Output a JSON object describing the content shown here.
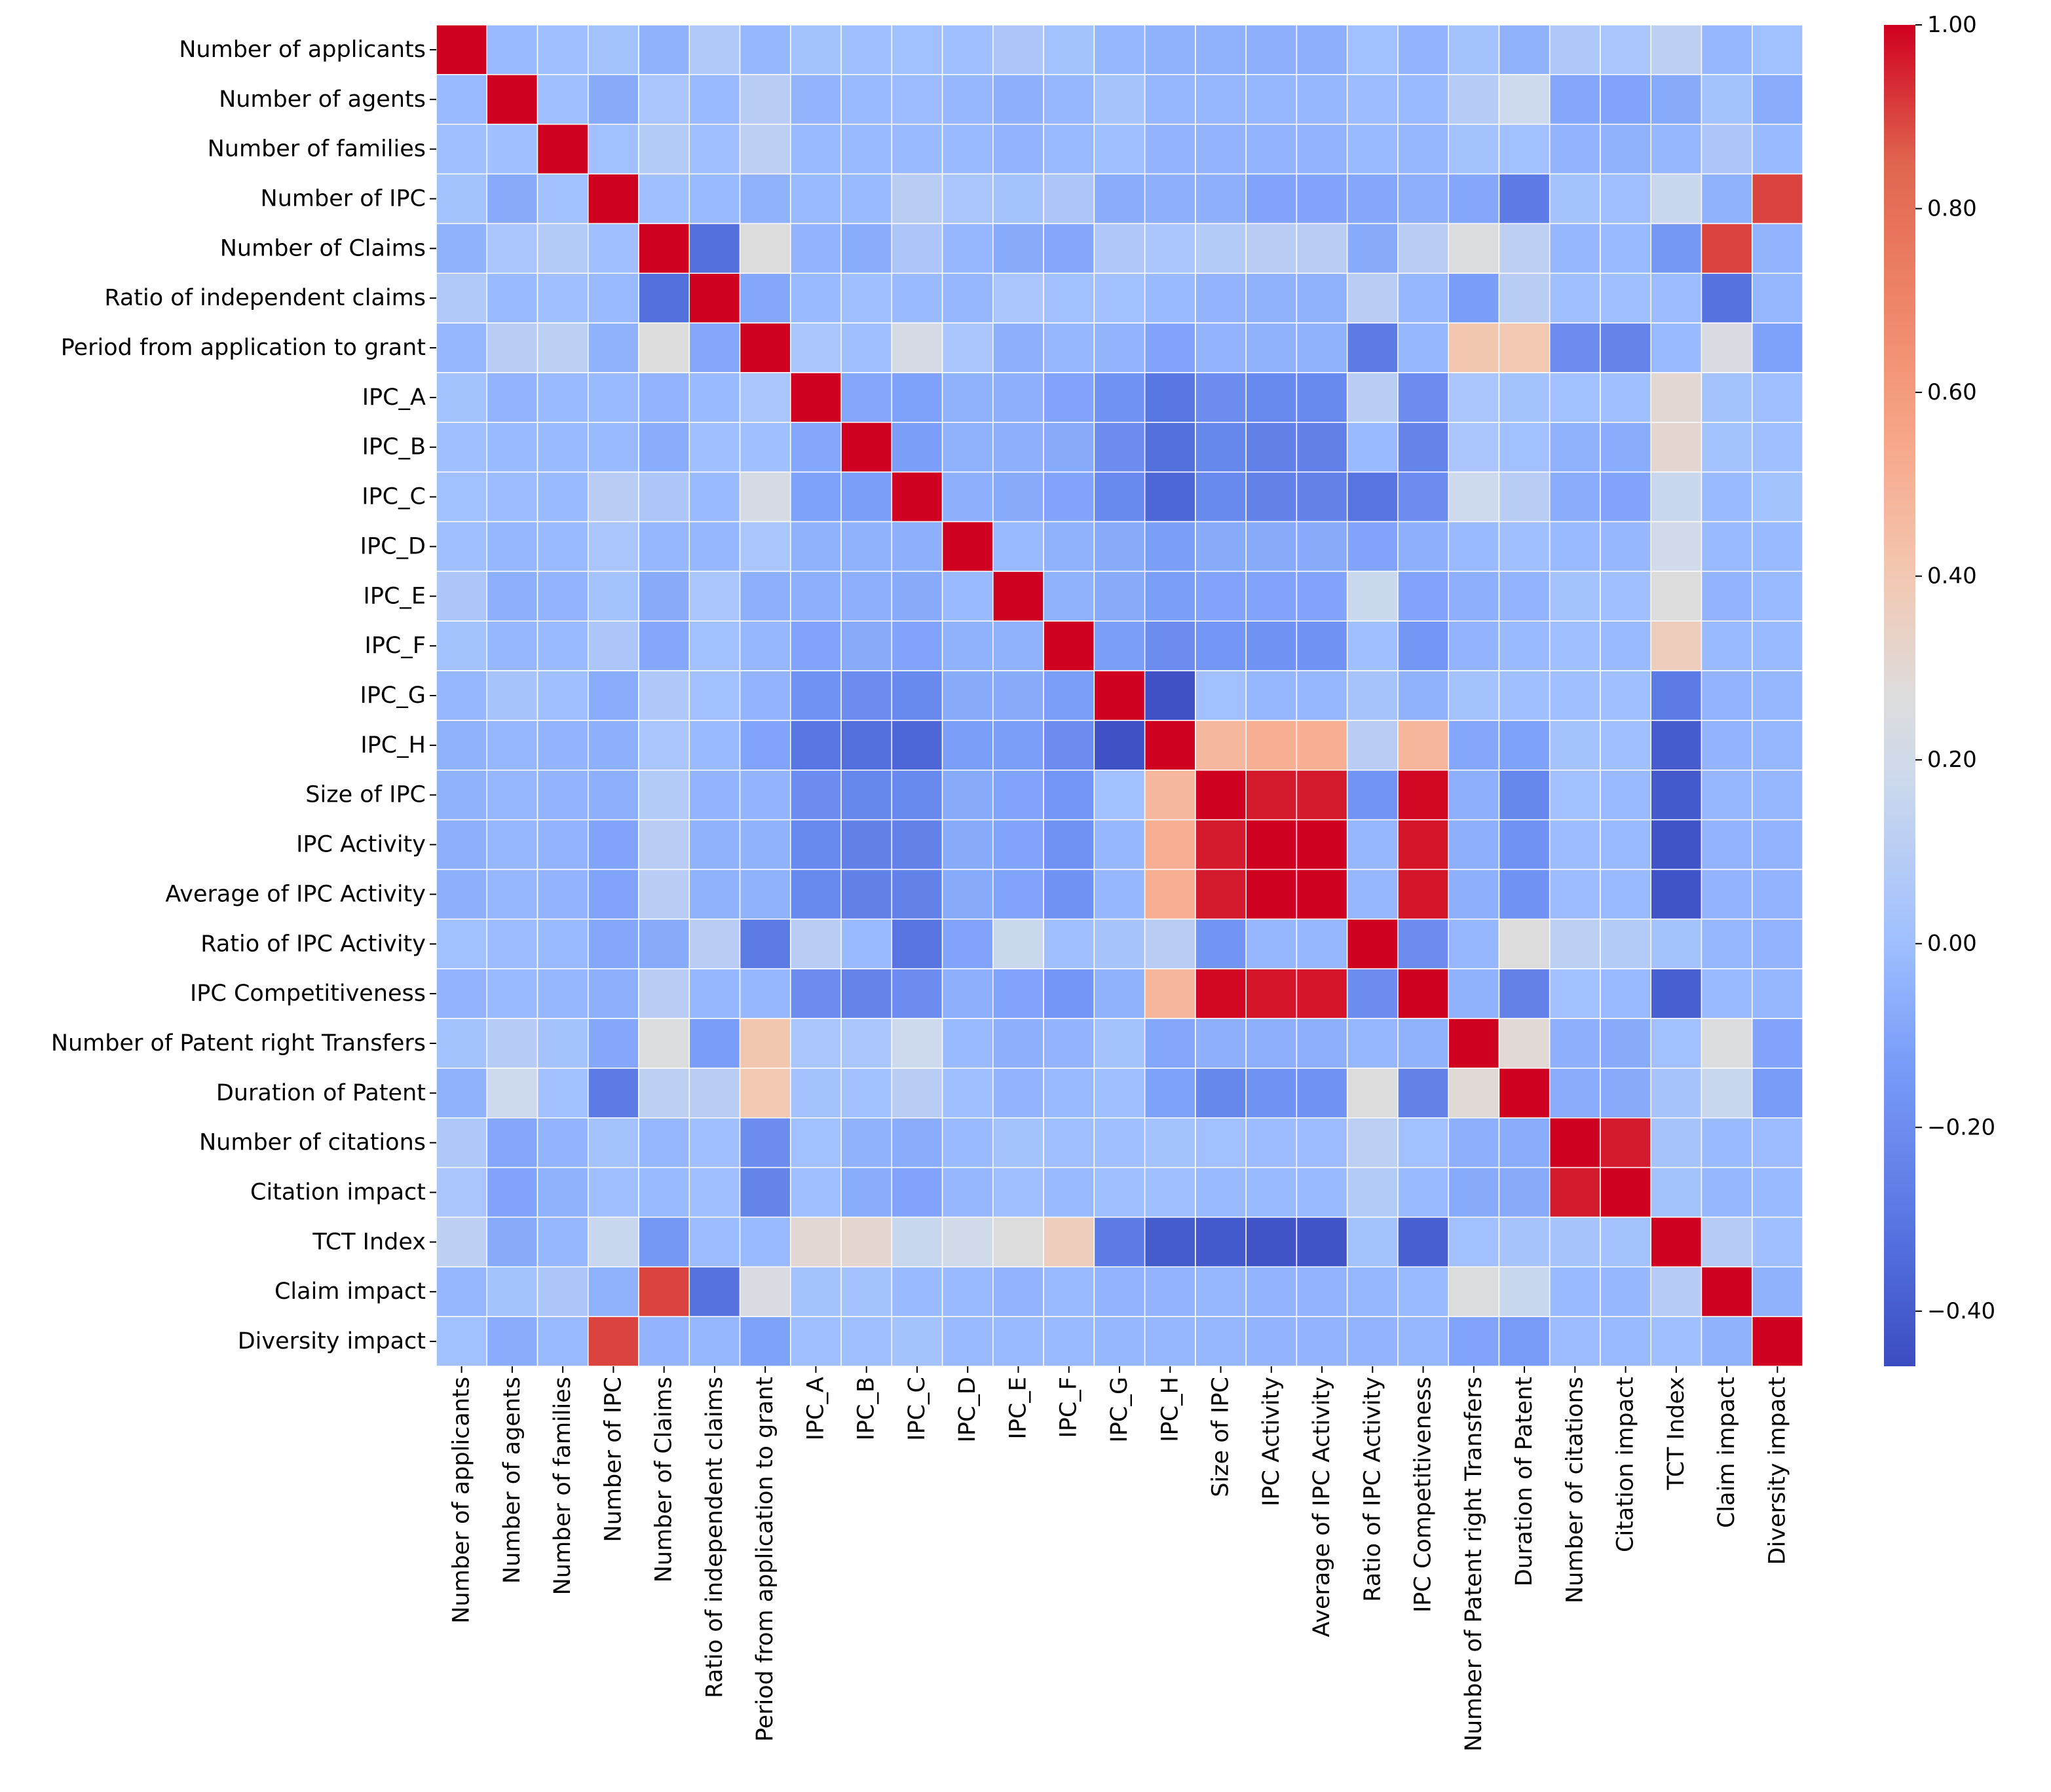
{
  "chart_data": {
    "type": "heatmap",
    "title": "",
    "xlabel": "",
    "ylabel": "",
    "labels": [
      "Number of applicants",
      "Number of agents",
      "Number of families",
      "Number of IPC",
      "Number of Claims",
      "Ratio of independent claims",
      "Period from application to grant",
      "IPC_A",
      "IPC_B",
      "IPC_C",
      "IPC_D",
      "IPC_E",
      "IPC_F",
      "IPC_G",
      "IPC_H",
      "Size of IPC",
      "IPC Activity",
      "Average of IPC Activity",
      "Ratio of IPC Activity",
      "IPC Competitiveness",
      "Number of Patent right Transfers",
      "Duration of Patent",
      "Number of citations",
      "Citation impact",
      "TCT Index",
      "Claim impact",
      "Diversity impact"
    ],
    "matrix": [
      [
        1.0,
        -0.02,
        0.0,
        0.02,
        -0.05,
        0.07,
        -0.03,
        0.02,
        0.0,
        0.01,
        0.0,
        0.05,
        0.02,
        -0.03,
        -0.05,
        -0.05,
        -0.06,
        -0.06,
        0.01,
        -0.04,
        0.02,
        -0.05,
        0.06,
        0.04,
        0.12,
        -0.03,
        0.01
      ],
      [
        -0.02,
        1.0,
        0.0,
        -0.08,
        0.04,
        -0.02,
        0.1,
        -0.04,
        -0.02,
        -0.01,
        -0.03,
        -0.06,
        -0.03,
        0.03,
        -0.03,
        -0.03,
        -0.03,
        -0.03,
        -0.01,
        -0.02,
        0.09,
        0.18,
        -0.09,
        -0.1,
        -0.08,
        0.02,
        -0.07
      ],
      [
        0.0,
        0.0,
        1.0,
        0.01,
        0.08,
        0.0,
        0.11,
        -0.02,
        -0.02,
        -0.02,
        -0.02,
        -0.04,
        -0.02,
        0.0,
        -0.04,
        -0.04,
        -0.04,
        -0.04,
        -0.02,
        -0.03,
        0.02,
        0.01,
        -0.04,
        -0.05,
        -0.03,
        0.05,
        -0.02
      ],
      [
        0.02,
        -0.08,
        0.01,
        1.0,
        0.0,
        -0.02,
        -0.05,
        -0.02,
        -0.02,
        0.1,
        0.04,
        0.02,
        0.05,
        -0.07,
        -0.06,
        -0.06,
        -0.1,
        -0.1,
        -0.09,
        -0.06,
        -0.09,
        -0.28,
        0.02,
        0.0,
        0.16,
        -0.05,
        0.9
      ],
      [
        -0.05,
        0.04,
        0.08,
        0.0,
        1.0,
        -0.33,
        0.27,
        -0.04,
        -0.07,
        0.05,
        -0.03,
        -0.08,
        -0.09,
        0.06,
        0.04,
        0.08,
        0.1,
        0.1,
        -0.08,
        0.1,
        0.26,
        0.12,
        -0.03,
        -0.02,
        -0.15,
        0.9,
        -0.04
      ],
      [
        0.07,
        -0.02,
        0.0,
        -0.02,
        -0.33,
        1.0,
        -0.09,
        -0.02,
        0.0,
        -0.02,
        -0.03,
        0.04,
        0.01,
        0.01,
        -0.02,
        -0.04,
        -0.05,
        -0.05,
        0.1,
        -0.03,
        -0.13,
        0.1,
        0.0,
        0.0,
        -0.01,
        -0.32,
        -0.03
      ],
      [
        -0.03,
        0.1,
        0.11,
        -0.05,
        0.27,
        -0.09,
        1.0,
        0.04,
        0.0,
        0.23,
        0.04,
        -0.06,
        -0.03,
        -0.04,
        -0.1,
        -0.04,
        -0.05,
        -0.05,
        -0.28,
        -0.03,
        0.41,
        0.4,
        -0.2,
        -0.24,
        -0.02,
        0.24,
        -0.11
      ],
      [
        0.02,
        -0.04,
        -0.02,
        -0.02,
        -0.04,
        -0.02,
        0.04,
        1.0,
        -0.09,
        -0.11,
        -0.05,
        -0.06,
        -0.1,
        -0.18,
        -0.3,
        -0.2,
        -0.22,
        -0.22,
        0.1,
        -0.2,
        0.04,
        0.02,
        0.01,
        0.0,
        0.3,
        0.02,
        0.0
      ],
      [
        0.0,
        -0.02,
        -0.02,
        -0.02,
        -0.07,
        0.0,
        0.0,
        -0.09,
        1.0,
        -0.12,
        -0.05,
        -0.06,
        -0.08,
        -0.2,
        -0.33,
        -0.23,
        -0.26,
        -0.26,
        -0.02,
        -0.24,
        0.04,
        0.01,
        -0.05,
        -0.07,
        0.31,
        0.02,
        0.0
      ],
      [
        0.01,
        -0.01,
        -0.02,
        0.1,
        0.05,
        -0.02,
        0.23,
        -0.11,
        -0.12,
        1.0,
        -0.06,
        -0.08,
        -0.1,
        -0.22,
        -0.36,
        -0.22,
        -0.25,
        -0.25,
        -0.31,
        -0.2,
        0.18,
        0.1,
        -0.07,
        -0.1,
        0.16,
        -0.02,
        0.02
      ],
      [
        0.0,
        -0.03,
        -0.02,
        0.04,
        -0.03,
        -0.03,
        0.04,
        -0.05,
        -0.05,
        -0.06,
        1.0,
        -0.02,
        -0.05,
        -0.08,
        -0.12,
        -0.08,
        -0.08,
        -0.08,
        -0.1,
        -0.06,
        -0.02,
        0.0,
        -0.02,
        -0.03,
        0.2,
        -0.02,
        -0.02
      ],
      [
        0.05,
        -0.06,
        -0.04,
        0.02,
        -0.08,
        0.04,
        -0.06,
        -0.06,
        -0.06,
        -0.08,
        -0.02,
        1.0,
        -0.05,
        -0.08,
        -0.12,
        -0.1,
        -0.1,
        -0.1,
        0.17,
        -0.1,
        -0.06,
        -0.04,
        0.02,
        0.0,
        0.27,
        -0.04,
        -0.02
      ],
      [
        0.02,
        -0.03,
        -0.02,
        0.05,
        -0.09,
        0.01,
        -0.03,
        -0.1,
        -0.08,
        -0.1,
        -0.05,
        -0.05,
        1.0,
        -0.12,
        -0.2,
        -0.16,
        -0.18,
        -0.18,
        0.0,
        -0.16,
        -0.04,
        -0.02,
        0.0,
        -0.02,
        0.37,
        -0.02,
        -0.02
      ],
      [
        -0.03,
        0.03,
        0.0,
        -0.07,
        0.06,
        0.01,
        -0.04,
        -0.18,
        -0.2,
        -0.22,
        -0.08,
        -0.08,
        -0.12,
        1.0,
        -0.44,
        0.01,
        -0.03,
        -0.03,
        0.03,
        -0.05,
        0.02,
        0.0,
        0.0,
        0.0,
        -0.28,
        -0.04,
        -0.03
      ],
      [
        -0.05,
        -0.03,
        -0.04,
        -0.06,
        0.04,
        -0.02,
        -0.1,
        -0.3,
        -0.33,
        -0.36,
        -0.12,
        -0.12,
        -0.2,
        -0.44,
        1.0,
        0.47,
        0.51,
        0.51,
        0.1,
        0.48,
        -0.09,
        -0.11,
        0.02,
        0.0,
        -0.4,
        -0.04,
        -0.03
      ],
      [
        -0.05,
        -0.03,
        -0.04,
        -0.06,
        0.08,
        -0.04,
        -0.04,
        -0.2,
        -0.23,
        -0.22,
        -0.08,
        -0.1,
        -0.16,
        0.01,
        0.47,
        1.0,
        0.96,
        0.96,
        -0.17,
        0.99,
        -0.06,
        -0.23,
        0.01,
        -0.02,
        -0.41,
        -0.03,
        -0.03
      ],
      [
        -0.06,
        -0.03,
        -0.04,
        -0.1,
        0.1,
        -0.05,
        -0.05,
        -0.22,
        -0.26,
        -0.25,
        -0.08,
        -0.1,
        -0.18,
        -0.03,
        0.51,
        0.96,
        1.0,
        1.0,
        -0.03,
        0.97,
        -0.06,
        -0.18,
        -0.01,
        -0.02,
        -0.43,
        -0.04,
        -0.04
      ],
      [
        -0.06,
        -0.03,
        -0.04,
        -0.1,
        0.1,
        -0.05,
        -0.05,
        -0.22,
        -0.26,
        -0.25,
        -0.08,
        -0.1,
        -0.18,
        -0.03,
        0.51,
        0.96,
        1.0,
        1.0,
        -0.03,
        0.97,
        -0.06,
        -0.18,
        -0.01,
        -0.02,
        -0.43,
        -0.04,
        -0.04
      ],
      [
        0.01,
        -0.01,
        -0.02,
        -0.09,
        -0.08,
        0.1,
        -0.28,
        0.1,
        -0.02,
        -0.31,
        -0.1,
        0.17,
        0.0,
        0.03,
        0.1,
        -0.17,
        -0.03,
        -0.03,
        1.0,
        -0.2,
        -0.03,
        0.27,
        0.11,
        0.08,
        0.02,
        -0.03,
        -0.04
      ],
      [
        -0.04,
        -0.02,
        -0.03,
        -0.06,
        0.1,
        -0.03,
        -0.03,
        -0.2,
        -0.24,
        -0.2,
        -0.06,
        -0.1,
        -0.16,
        -0.05,
        0.48,
        0.99,
        0.97,
        0.97,
        -0.2,
        1.0,
        -0.05,
        -0.25,
        0.01,
        -0.02,
        -0.39,
        -0.02,
        -0.03
      ],
      [
        0.02,
        0.09,
        0.02,
        -0.09,
        0.26,
        -0.13,
        0.41,
        0.04,
        0.04,
        0.18,
        -0.02,
        -0.06,
        -0.04,
        0.02,
        -0.09,
        -0.06,
        -0.06,
        -0.06,
        -0.03,
        -0.05,
        1.0,
        0.29,
        -0.06,
        -0.08,
        0.01,
        0.26,
        -0.1
      ],
      [
        -0.05,
        0.18,
        0.01,
        -0.28,
        0.12,
        0.1,
        0.4,
        0.02,
        0.01,
        0.1,
        0.0,
        -0.04,
        -0.02,
        0.0,
        -0.11,
        -0.23,
        -0.18,
        -0.18,
        0.27,
        -0.25,
        0.29,
        1.0,
        -0.07,
        -0.08,
        0.03,
        0.16,
        -0.14
      ],
      [
        0.06,
        -0.09,
        -0.04,
        0.02,
        -0.03,
        0.0,
        -0.2,
        0.01,
        -0.05,
        -0.07,
        -0.02,
        0.02,
        0.0,
        0.0,
        0.02,
        0.01,
        -0.01,
        -0.01,
        0.11,
        0.01,
        -0.06,
        -0.07,
        1.0,
        0.96,
        0.03,
        -0.02,
        -0.01
      ],
      [
        0.04,
        -0.1,
        -0.05,
        0.0,
        -0.02,
        0.0,
        -0.24,
        0.0,
        -0.07,
        -0.1,
        -0.03,
        0.0,
        -0.02,
        0.0,
        0.0,
        -0.02,
        -0.02,
        -0.02,
        0.08,
        -0.02,
        -0.08,
        -0.08,
        0.96,
        1.0,
        0.02,
        -0.03,
        -0.02
      ],
      [
        0.12,
        -0.08,
        -0.03,
        0.16,
        -0.15,
        -0.01,
        -0.02,
        0.3,
        0.31,
        0.16,
        0.2,
        0.27,
        0.37,
        -0.28,
        -0.4,
        -0.41,
        -0.43,
        -0.43,
        0.02,
        -0.39,
        0.01,
        0.03,
        0.03,
        0.02,
        1.0,
        0.09,
        0.0
      ],
      [
        -0.03,
        0.02,
        0.05,
        -0.05,
        0.9,
        -0.32,
        0.24,
        0.02,
        0.02,
        -0.02,
        -0.02,
        -0.04,
        -0.02,
        -0.04,
        -0.04,
        -0.03,
        -0.04,
        -0.04,
        -0.03,
        -0.02,
        0.26,
        0.16,
        -0.02,
        -0.03,
        0.09,
        1.0,
        -0.05
      ],
      [
        0.01,
        -0.07,
        -0.02,
        0.9,
        -0.04,
        -0.03,
        -0.11,
        0.0,
        0.0,
        0.02,
        -0.02,
        -0.02,
        -0.02,
        -0.03,
        -0.03,
        -0.03,
        -0.04,
        -0.04,
        -0.04,
        -0.03,
        -0.1,
        -0.14,
        -0.01,
        -0.02,
        0.0,
        -0.05,
        1.0
      ]
    ],
    "colorscale": {
      "name": "coolwarm",
      "vmin": -0.46,
      "vmax": 1.0,
      "stops": [
        {
          "v": -0.46,
          "color": "#3b4cc0"
        },
        {
          "v": -0.3,
          "color": "#5977e3"
        },
        {
          "v": -0.12,
          "color": "#7b9ff9"
        },
        {
          "v": 0.0,
          "color": "#9fbfff"
        },
        {
          "v": 0.18,
          "color": "#cdd9ec"
        },
        {
          "v": 0.27,
          "color": "#dddcdc"
        },
        {
          "v": 0.4,
          "color": "#f3c8b2"
        },
        {
          "v": 0.55,
          "color": "#f7a688"
        },
        {
          "v": 0.7,
          "color": "#ee8468"
        },
        {
          "v": 0.85,
          "color": "#e0654f"
        },
        {
          "v": 1.0,
          "color": "#d00020"
        }
      ],
      "ticks": [
        -0.4,
        -0.2,
        0.0,
        0.2,
        0.4,
        0.6,
        0.8,
        1.0
      ],
      "tick_labels": [
        "−0.40",
        "−0.20",
        "0.00",
        "0.20",
        "0.40",
        "0.60",
        "0.80",
        "1.00"
      ]
    }
  }
}
